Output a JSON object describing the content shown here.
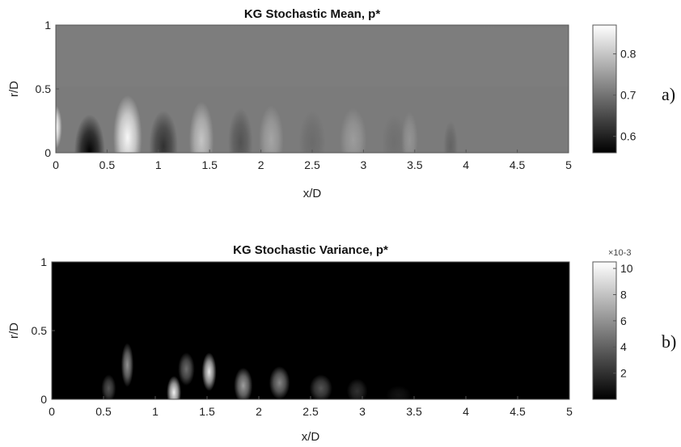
{
  "chart_data": [
    {
      "type": "heatmap",
      "panel_label": "a)",
      "title": "KG Stochastic Mean, p*",
      "xlabel": "x/D",
      "ylabel": "r/D",
      "xlim": [
        0,
        5
      ],
      "ylim": [
        0,
        1
      ],
      "xticks": [
        "0",
        "0.5",
        "1",
        "1.5",
        "2",
        "2.5",
        "3",
        "3.5",
        "4",
        "4.5",
        "5"
      ],
      "yticks": [
        "0",
        "0.5",
        "1"
      ],
      "colormap": "gray",
      "colorbar": {
        "min": 0.56,
        "max": 0.87,
        "ticks": [
          "0.6",
          "0.7",
          "0.8"
        ],
        "tick_values": [
          0.6,
          0.7,
          0.8
        ],
        "exponent": ""
      },
      "background_value": 0.71,
      "features": [
        {
          "x": 0.0,
          "r": 0.2,
          "value": 0.87,
          "sx": 0.06,
          "sr": 0.17
        },
        {
          "x": 0.33,
          "r": 0.0,
          "value": 0.56,
          "sx": 0.15,
          "sr": 0.3
        },
        {
          "x": 0.7,
          "r": 0.12,
          "value": 0.86,
          "sx": 0.14,
          "sr": 0.33
        },
        {
          "x": 1.05,
          "r": 0.05,
          "value": 0.62,
          "sx": 0.14,
          "sr": 0.28
        },
        {
          "x": 1.42,
          "r": 0.1,
          "value": 0.8,
          "sx": 0.12,
          "sr": 0.3
        },
        {
          "x": 1.8,
          "r": 0.08,
          "value": 0.66,
          "sx": 0.12,
          "sr": 0.27
        },
        {
          "x": 2.1,
          "r": 0.1,
          "value": 0.76,
          "sx": 0.12,
          "sr": 0.27
        },
        {
          "x": 2.5,
          "r": 0.08,
          "value": 0.69,
          "sx": 0.13,
          "sr": 0.25
        },
        {
          "x": 2.9,
          "r": 0.1,
          "value": 0.75,
          "sx": 0.13,
          "sr": 0.25
        },
        {
          "x": 3.3,
          "r": 0.08,
          "value": 0.695,
          "sx": 0.12,
          "sr": 0.22
        },
        {
          "x": 3.45,
          "r": 0.1,
          "value": 0.74,
          "sx": 0.08,
          "sr": 0.22
        },
        {
          "x": 3.85,
          "r": 0.05,
          "value": 0.68,
          "sx": 0.07,
          "sr": 0.2
        }
      ]
    },
    {
      "type": "heatmap",
      "panel_label": "b)",
      "title": "KG Stochastic Variance, p*",
      "xlabel": "x/D",
      "ylabel": "r/D",
      "xlim": [
        0,
        5
      ],
      "ylim": [
        0,
        1
      ],
      "xticks": [
        "0",
        "0.5",
        "1",
        "1.5",
        "2",
        "2.5",
        "3",
        "3.5",
        "4",
        "4.5",
        "5"
      ],
      "yticks": [
        "0",
        "0.5",
        "1"
      ],
      "colormap": "gray",
      "colorbar": {
        "min": 0.0,
        "max": 10.5,
        "ticks": [
          "2",
          "4",
          "6",
          "8",
          "10"
        ],
        "tick_values": [
          2,
          4,
          6,
          8,
          10
        ],
        "exponent": "×10-3"
      },
      "background_value": 0.0,
      "features": [
        {
          "x": 0.73,
          "r": 0.25,
          "value": 6.0,
          "sx": 0.06,
          "sr": 0.16
        },
        {
          "x": 0.55,
          "r": 0.08,
          "value": 3.5,
          "sx": 0.07,
          "sr": 0.1
        },
        {
          "x": 1.18,
          "r": 0.05,
          "value": 10.0,
          "sx": 0.07,
          "sr": 0.12
        },
        {
          "x": 1.3,
          "r": 0.22,
          "value": 4.5,
          "sx": 0.08,
          "sr": 0.12
        },
        {
          "x": 1.52,
          "r": 0.2,
          "value": 9.5,
          "sx": 0.07,
          "sr": 0.14
        },
        {
          "x": 1.85,
          "r": 0.1,
          "value": 6.5,
          "sx": 0.09,
          "sr": 0.13
        },
        {
          "x": 2.2,
          "r": 0.12,
          "value": 5.5,
          "sx": 0.1,
          "sr": 0.12
        },
        {
          "x": 2.6,
          "r": 0.08,
          "value": 3.5,
          "sx": 0.11,
          "sr": 0.1
        },
        {
          "x": 2.95,
          "r": 0.06,
          "value": 2.0,
          "sx": 0.1,
          "sr": 0.09
        },
        {
          "x": 3.35,
          "r": 0.03,
          "value": 0.8,
          "sx": 0.12,
          "sr": 0.07
        }
      ]
    }
  ]
}
